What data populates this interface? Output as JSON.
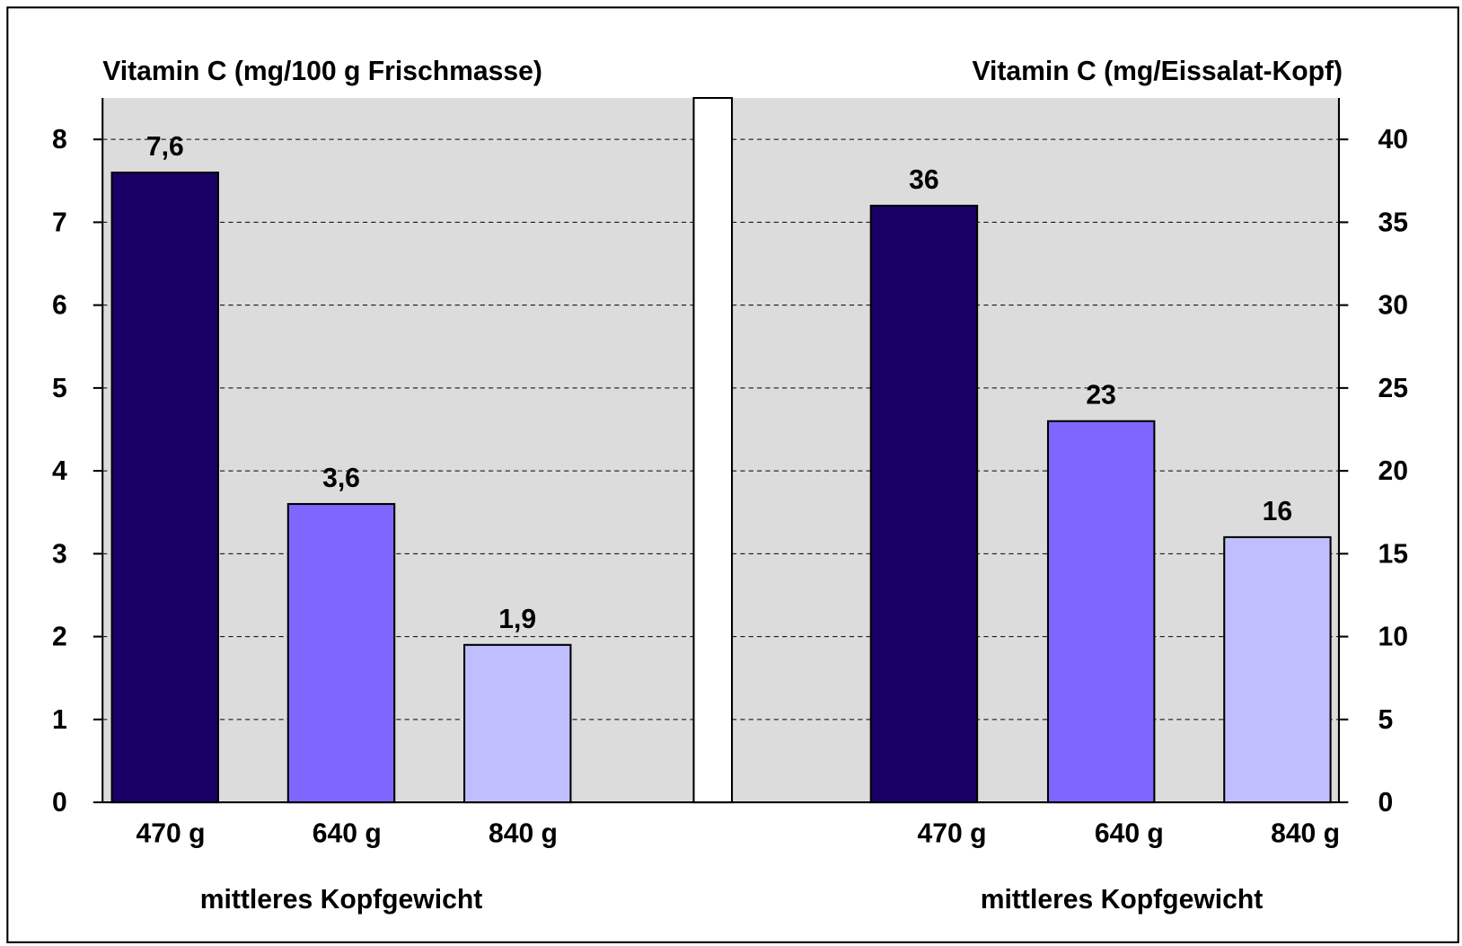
{
  "chart_data": [
    {
      "type": "bar",
      "title": "Vitamin C (mg/100 g Frischmasse)",
      "xlabel": "mittleres Kopfgewicht",
      "categories": [
        "470 g",
        "640 g",
        "840 g"
      ],
      "values": [
        7.6,
        3.6,
        1.9
      ],
      "value_labels": [
        "7,6",
        "3,6",
        "1,9"
      ],
      "colors": [
        "#1a0066",
        "#7f66ff",
        "#bfbfff"
      ],
      "ylim": [
        0,
        8.5
      ],
      "yticks": [
        0,
        1,
        2,
        3,
        4,
        5,
        6,
        7,
        8
      ],
      "grid": true
    },
    {
      "type": "bar",
      "title": "Vitamin C (mg/Eissalat-Kopf)",
      "xlabel": "mittleres Kopfgewicht",
      "categories": [
        "470 g",
        "640 g",
        "840 g"
      ],
      "values": [
        36,
        23,
        16
      ],
      "colors": [
        "#1a0066",
        "#7f66ff",
        "#bfbfff"
      ],
      "ylim": [
        0,
        42.5
      ],
      "yticks": [
        0,
        5,
        10,
        15,
        20,
        25,
        30,
        35,
        40
      ],
      "grid": true
    }
  ]
}
